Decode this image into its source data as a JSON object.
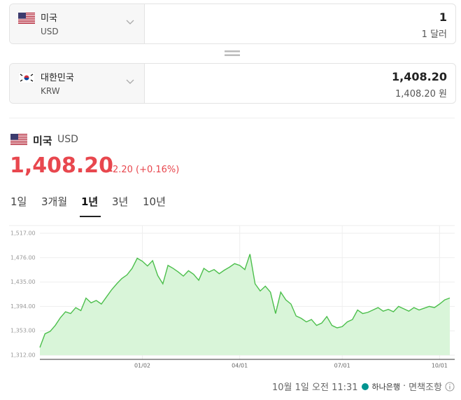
{
  "converter": {
    "from": {
      "country": "미국",
      "code": "USD",
      "amount": "1",
      "amount_text": "1 달러"
    },
    "to": {
      "country": "대한민국",
      "code": "KRW",
      "amount": "1,408.20",
      "amount_text": "1,408.20 원"
    }
  },
  "quote": {
    "country": "미국",
    "code": "USD",
    "price": "1,408.20",
    "change": "2.20",
    "change_percent": "(+0.16%)"
  },
  "tabs": {
    "items": [
      "1일",
      "3개월",
      "1년",
      "3년",
      "10년"
    ],
    "active": 2
  },
  "chart_data": {
    "type": "line",
    "color": "#4cbf4c",
    "area_color": "#d9f5d9",
    "grid": true,
    "categories": [
      null,
      null,
      null,
      null,
      null,
      null,
      null,
      null,
      null,
      null,
      null,
      null,
      null,
      null,
      null,
      null,
      null,
      null,
      null,
      null,
      "01/02",
      null,
      null,
      null,
      null,
      null,
      null,
      null,
      null,
      null,
      null,
      null,
      null,
      null,
      null,
      null,
      null,
      null,
      null,
      "04/01",
      null,
      null,
      null,
      null,
      null,
      null,
      null,
      null,
      null,
      null,
      null,
      null,
      null,
      null,
      null,
      null,
      null,
      null,
      null,
      "07/01",
      null,
      null,
      null,
      null,
      null,
      null,
      null,
      null,
      null,
      null,
      null,
      null,
      null,
      null,
      null,
      null,
      null,
      null,
      "10/01",
      null,
      null
    ],
    "values": [
      1325,
      1348,
      1352,
      1362,
      1375,
      1385,
      1382,
      1392,
      1387,
      1408,
      1400,
      1404,
      1398,
      1410,
      1422,
      1432,
      1441,
      1447,
      1458,
      1475,
      1470,
      1462,
      1471,
      1446,
      1432,
      1463,
      1458,
      1452,
      1445,
      1454,
      1448,
      1438,
      1458,
      1452,
      1456,
      1449,
      1455,
      1460,
      1466,
      1463,
      1456,
      1482,
      1432,
      1420,
      1428,
      1418,
      1382,
      1418,
      1405,
      1398,
      1378,
      1374,
      1368,
      1372,
      1362,
      1366,
      1377,
      1362,
      1358,
      1360,
      1368,
      1372,
      1388,
      1382,
      1384,
      1388,
      1392,
      1386,
      1389,
      1385,
      1394,
      1390,
      1386,
      1392,
      1388,
      1391,
      1394,
      1392,
      1398,
      1405,
      1408.2
    ],
    "ylim": [
      1312,
      1517
    ],
    "yticks": [
      {
        "value": 1312,
        "label": "1,312.00"
      },
      {
        "value": 1353,
        "label": "1,353.00"
      },
      {
        "value": 1394,
        "label": "1,394.00"
      },
      {
        "value": 1435,
        "label": "1,435.00"
      },
      {
        "value": 1476,
        "label": "1,476.00"
      },
      {
        "value": 1517,
        "label": "1,517.00"
      }
    ]
  },
  "footer": {
    "timestamp": "10월 1일 오전 11:31",
    "provider": "하나은행",
    "separator": "·",
    "disclaimer": "면책조항"
  }
}
